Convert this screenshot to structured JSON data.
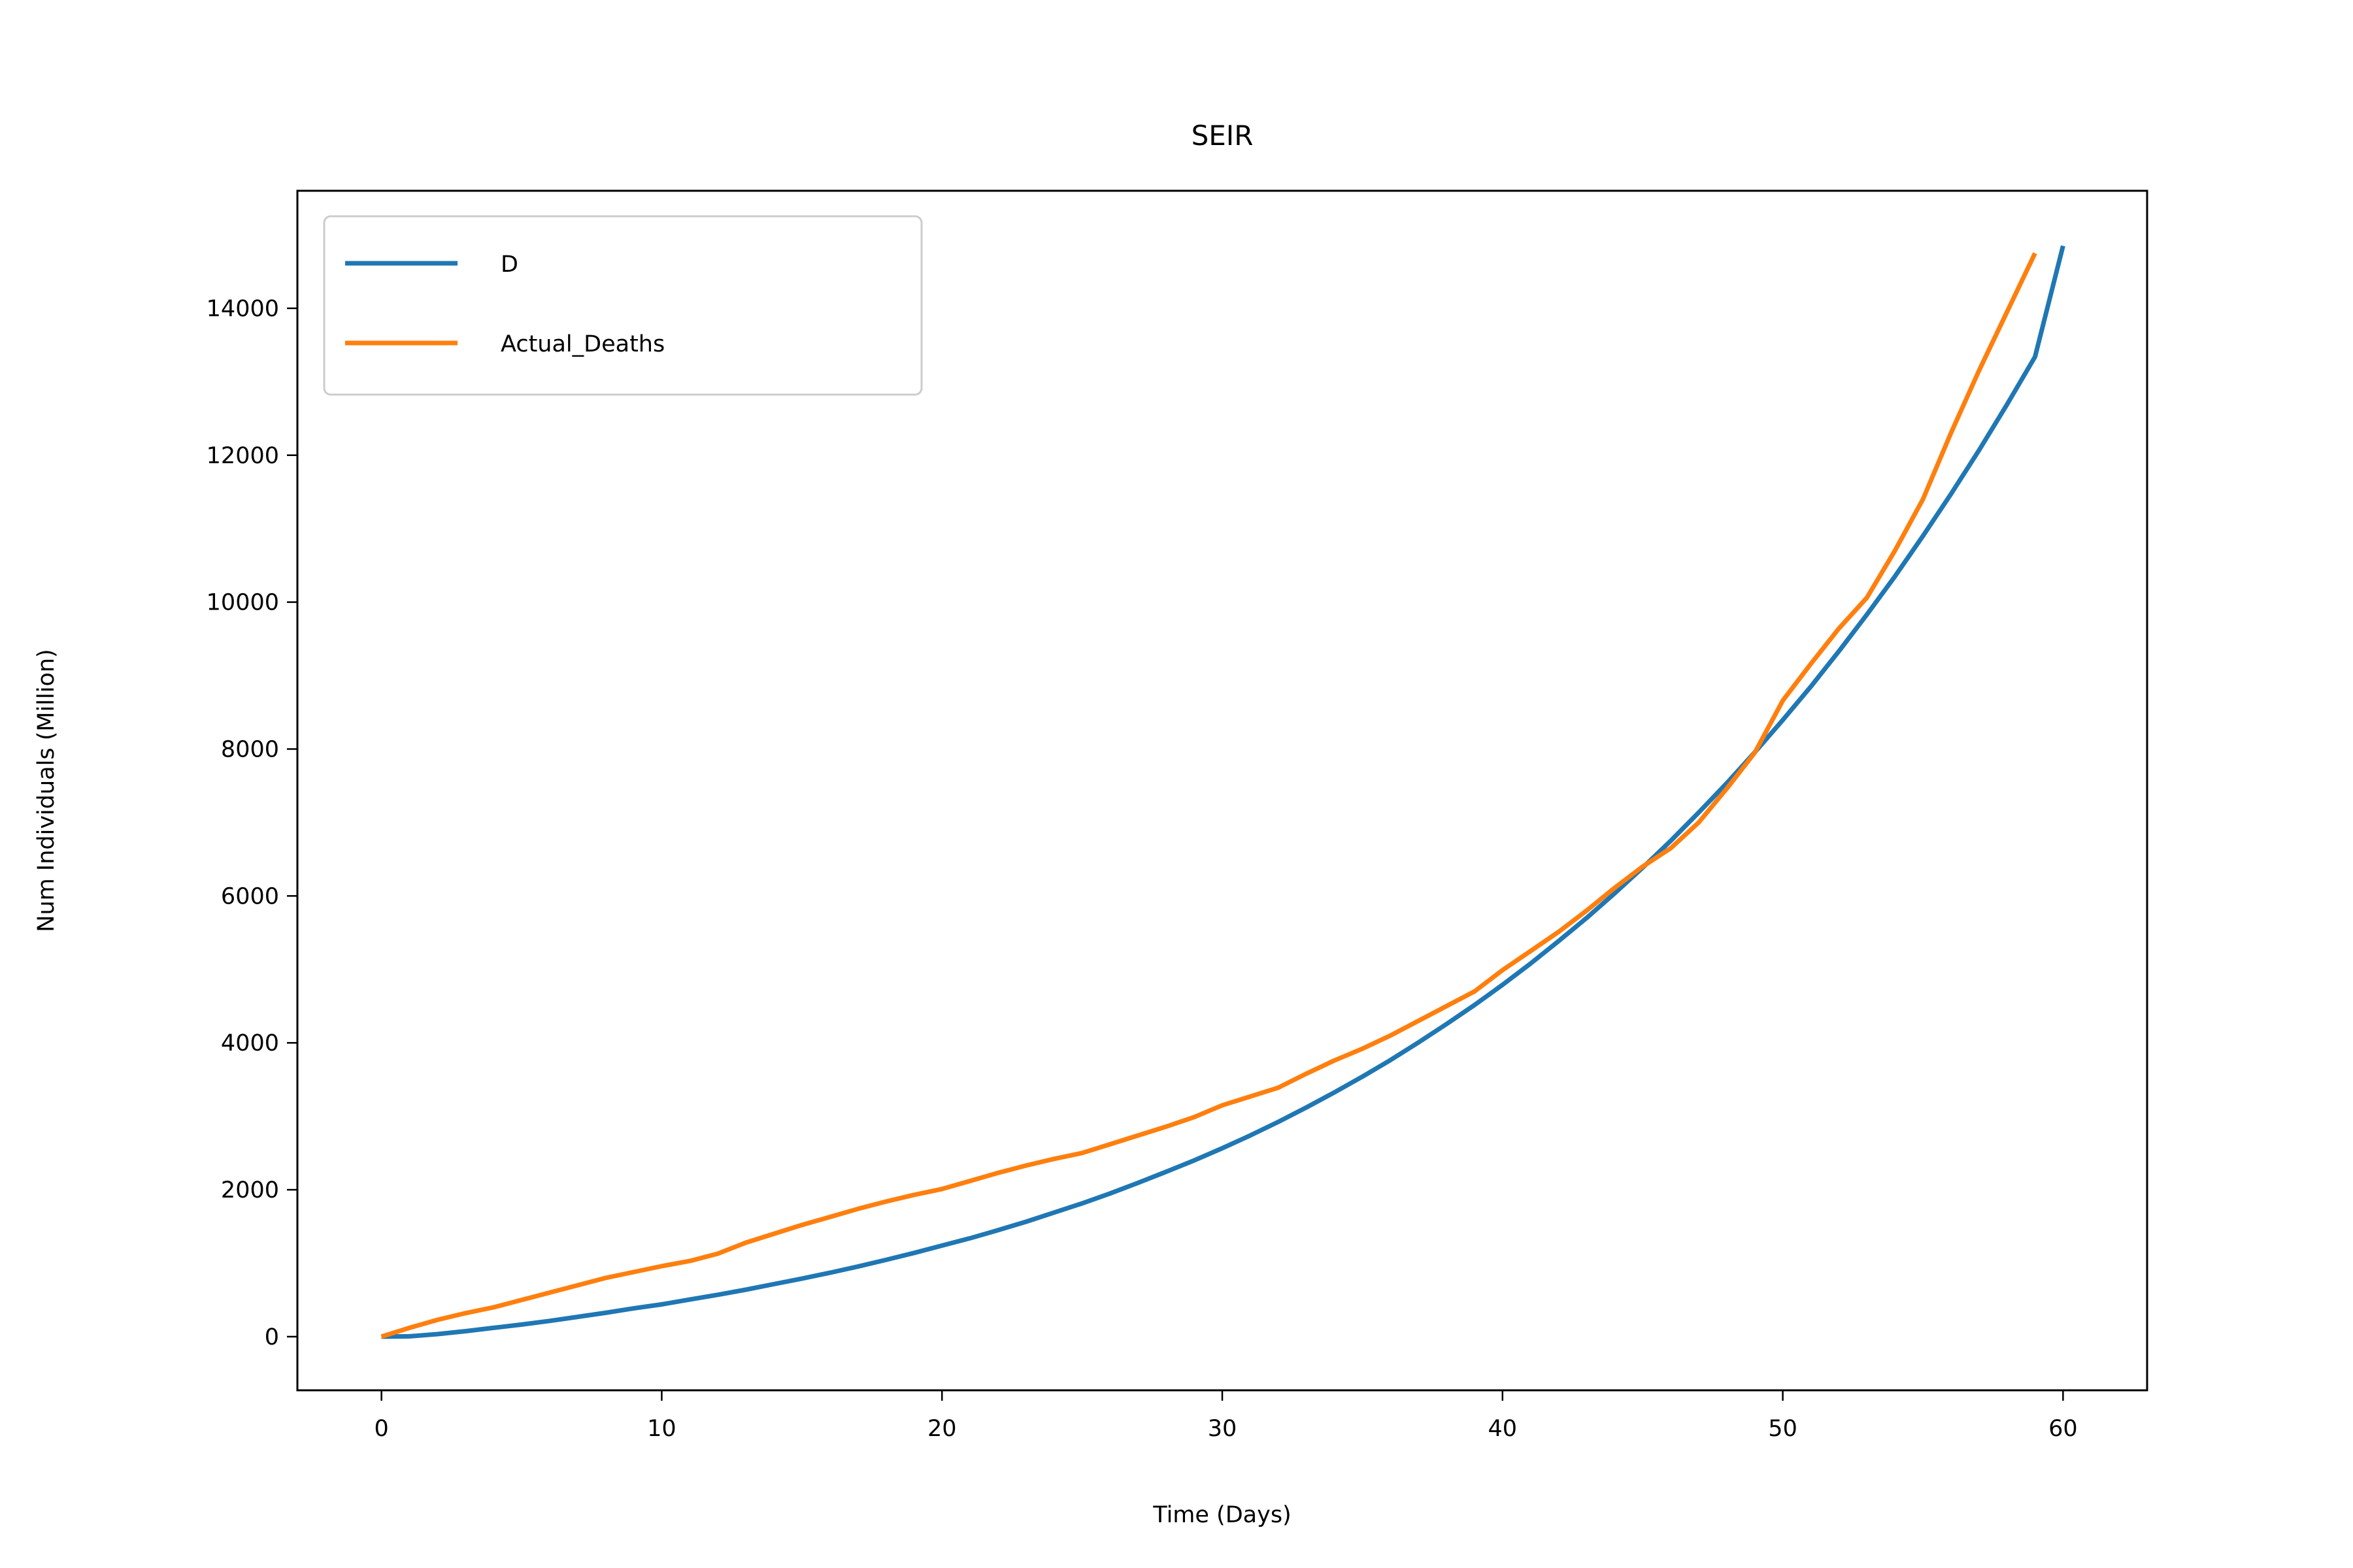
{
  "chart_data": {
    "type": "line",
    "title": "SEIR",
    "xlabel": "Time (Days)",
    "ylabel": "Num Individuals (Million)",
    "xlim": [
      -3,
      63
    ],
    "ylim": [
      -730,
      15600
    ],
    "xticks": [
      0,
      10,
      20,
      30,
      40,
      50,
      60
    ],
    "yticks": [
      0,
      2000,
      4000,
      6000,
      8000,
      10000,
      12000,
      14000
    ],
    "grid": false,
    "legend_position": "top-left",
    "series": [
      {
        "name": "D",
        "color": "#1f77b4",
        "x": [
          0,
          1,
          2,
          3,
          4,
          5,
          6,
          7,
          8,
          9,
          10,
          11,
          12,
          13,
          14,
          15,
          16,
          17,
          18,
          19,
          20,
          21,
          22,
          23,
          24,
          25,
          26,
          27,
          28,
          29,
          30,
          31,
          32,
          33,
          34,
          35,
          36,
          37,
          38,
          39,
          40,
          41,
          42,
          43,
          44,
          45,
          46,
          47,
          48,
          49,
          50,
          51,
          52,
          53,
          54,
          55,
          56,
          57,
          58,
          59,
          60
        ],
        "y": [
          0,
          5,
          35,
          75,
          120,
          165,
          215,
          270,
          325,
          385,
          440,
          505,
          570,
          640,
          715,
          790,
          870,
          955,
          1045,
          1140,
          1240,
          1340,
          1450,
          1565,
          1690,
          1815,
          1950,
          2095,
          2245,
          2400,
          2565,
          2740,
          2925,
          3120,
          3325,
          3540,
          3765,
          4005,
          4255,
          4515,
          4790,
          5080,
          5385,
          5700,
          6035,
          6385,
          6750,
          7135,
          7535,
          7955,
          8395,
          8850,
          9330,
          9830,
          10350,
          10900,
          11470,
          12065,
          12690,
          13340,
          14850
        ]
      },
      {
        "name": "Actual_Deaths",
        "color": "#ff7f0e",
        "x": [
          0,
          1,
          2,
          3,
          4,
          5,
          6,
          7,
          8,
          9,
          10,
          11,
          12,
          13,
          14,
          15,
          16,
          17,
          18,
          19,
          20,
          21,
          22,
          23,
          24,
          25,
          26,
          27,
          28,
          29,
          30,
          31,
          32,
          33,
          34,
          35,
          36,
          37,
          38,
          39,
          40,
          41,
          42,
          43,
          44,
          45,
          46,
          47,
          48,
          49,
          50,
          51,
          52,
          53,
          54,
          55,
          56,
          57,
          58,
          59
        ],
        "y": [
          0,
          120,
          230,
          320,
          400,
          500,
          600,
          700,
          800,
          880,
          960,
          1030,
          1130,
          1280,
          1400,
          1520,
          1630,
          1740,
          1840,
          1930,
          2010,
          2120,
          2230,
          2330,
          2420,
          2500,
          2620,
          2740,
          2860,
          2990,
          3150,
          3270,
          3390,
          3580,
          3760,
          3920,
          4100,
          4300,
          4500,
          4700,
          4990,
          5250,
          5510,
          5800,
          6110,
          6400,
          6650,
          7000,
          7460,
          7950,
          8660,
          9160,
          9640,
          10060,
          10700,
          11400,
          12300,
          13150,
          13950,
          14750
        ]
      }
    ]
  }
}
